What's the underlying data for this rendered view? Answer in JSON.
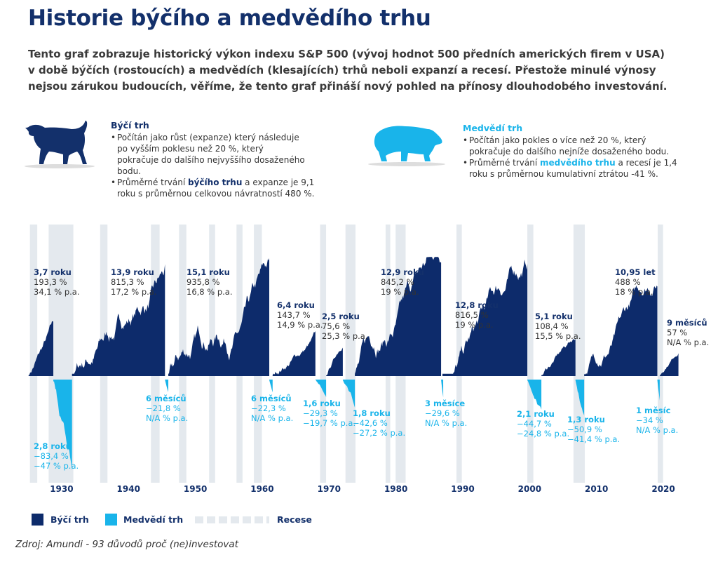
{
  "title": "Historie býčího a medvědího trhu",
  "intro": [
    "Tento graf zobrazuje historický výkon indexu S&P 500 (vývoj hodnot 500 předních amerických firem v USA)",
    "v době býčích (rostoucích) a medvědích (klesajících) trhů neboli expanzí a recesí. Přestože minulé výnosy",
    "nejsou zárukou budoucích, věříme, že tento graf přináší nový pohled na přínosy dlouhodobého investování."
  ],
  "bull_info": {
    "icon": "bull-icon",
    "heading": "Býčí trh",
    "item1": "Počítán jako růst (expanze) který následuje po vyšším poklesu než 20 %, který pokračuje do dalšího nejvyššího dosaženého bodu.",
    "item2_pre": "Průměrné trvání ",
    "item2_hl": "býčího trhu",
    "item2_post": " a expanze je 9,1 roku s průměrnou celkovou návratností 480 %."
  },
  "bear_info": {
    "icon": "bear-icon",
    "heading": "Medvědí trh",
    "item1": "Počítán jako pokles o více než 20 %, který pokračuje do dalšího nejníže dosaženého bodu.",
    "item2_pre": "Průměrné trvání ",
    "item2_hl": "medvědího trhu",
    "item2_post": " a recesí je 1,4 roku s průměrnou kumulativní ztrátou -41 %."
  },
  "chart_data": {
    "type": "area",
    "x_ticks": [
      "1930",
      "1940",
      "1950",
      "1960",
      "1970",
      "1980",
      "1990",
      "2000",
      "2010",
      "2020"
    ],
    "colors": {
      "bull": "#0d2b6b",
      "bear": "#19b4ea",
      "recession": "#e4e9ee"
    },
    "bull_markets": [
      {
        "start": 1926.0,
        "end": 1929.7,
        "duration": "3,7 roku",
        "return": "193,3 %",
        "return_pct": 193.3,
        "annual": "34,1 % p.a."
      },
      {
        "start": 1932.5,
        "end": 1946.4,
        "duration": "13,9 roku",
        "return": "815,3 %",
        "return_pct": 815.3,
        "annual": "17,2 % p.a."
      },
      {
        "start": 1946.9,
        "end": 1962.0,
        "duration": "15,1 roku",
        "return": "935,8 %",
        "return_pct": 935.8,
        "annual": "16,8 % p.a."
      },
      {
        "start": 1962.5,
        "end": 1968.9,
        "duration": "6,4 roku",
        "return": "143,7 %",
        "return_pct": 143.7,
        "annual": "14,9 % p.a."
      },
      {
        "start": 1970.5,
        "end": 1973.0,
        "duration": "2,5 roku",
        "return": "75,6 %",
        "return_pct": 75.6,
        "annual": "25,3 % p.a."
      },
      {
        "start": 1974.8,
        "end": 1987.7,
        "duration": "12,9 roku",
        "return": "845,2 %",
        "return_pct": 845.2,
        "annual": "19 % p.a."
      },
      {
        "start": 1987.9,
        "end": 2000.6,
        "duration": "12,8 roku",
        "return": "816,5 %",
        "return_pct": 816.5,
        "annual": "19 % p.a."
      },
      {
        "start": 2002.7,
        "end": 2007.8,
        "duration": "5,1 roku",
        "return": "108,4 %",
        "return_pct": 108.4,
        "annual": "15,5 % p.a."
      },
      {
        "start": 2009.1,
        "end": 2020.05,
        "duration": "10,95 let",
        "return": "488 %",
        "return_pct": 488,
        "annual": "18 % p.a."
      },
      {
        "start": 2020.4,
        "end": 2023.2,
        "duration": "9 měsíců",
        "return": "57 %",
        "return_pct": 57,
        "annual": "N/A % p.a."
      }
    ],
    "bear_markets": [
      {
        "start": 1929.7,
        "end": 1932.5,
        "duration": "2,8 roku",
        "return": "−83,4 %",
        "return_pct": -83.4,
        "annual": "−47 % p.a."
      },
      {
        "start": 1946.4,
        "end": 1946.9,
        "duration": "6 měsíců",
        "return": "−21,8 %",
        "return_pct": -21.8,
        "annual": "N/A % p.a."
      },
      {
        "start": 1962.0,
        "end": 1962.5,
        "duration": "6 měsíců",
        "return": "−22,3 %",
        "return_pct": -22.3,
        "annual": "N/A % p.a."
      },
      {
        "start": 1968.9,
        "end": 1970.5,
        "duration": "1,6 roku",
        "return": "−29,3 %",
        "return_pct": -29.3,
        "annual": "−19,7 % p.a."
      },
      {
        "start": 1973.0,
        "end": 1974.8,
        "duration": "1,8 roku",
        "return": "−42,6 %",
        "return_pct": -42.6,
        "annual": "−27,2 % p.a."
      },
      {
        "start": 1987.7,
        "end": 1987.9,
        "duration": "3 měsíce",
        "return": "−29,6 %",
        "return_pct": -29.6,
        "annual": "N/A % p.a."
      },
      {
        "start": 2000.6,
        "end": 2002.7,
        "duration": "2,1 roku",
        "return": "−44,7 %",
        "return_pct": -44.7,
        "annual": "−24,8 % p.a."
      },
      {
        "start": 2007.8,
        "end": 2009.1,
        "duration": "1,3 roku",
        "return": "−50,9 %",
        "return_pct": -50.9,
        "annual": "−41,4 % p.a."
      },
      {
        "start": 2020.05,
        "end": 2020.4,
        "duration": "1 měsíc",
        "return": "−34 %",
        "return_pct": -34,
        "annual": "N/A % p.a."
      }
    ],
    "recessions": [
      [
        1926.2,
        1927.3
      ],
      [
        1929.0,
        1932.7
      ],
      [
        1936.7,
        1937.8
      ],
      [
        1944.3,
        1945.6
      ],
      [
        1948.5,
        1949.6
      ],
      [
        1953.0,
        1953.9
      ],
      [
        1957.1,
        1958.0
      ],
      [
        1959.7,
        1960.9
      ],
      [
        1969.6,
        1970.5
      ],
      [
        1973.4,
        1974.9
      ],
      [
        1979.4,
        1980.1
      ],
      [
        1980.9,
        1982.4
      ],
      [
        1990.0,
        1990.8
      ],
      [
        2000.6,
        2001.5
      ],
      [
        2007.5,
        2009.2
      ],
      [
        2020.1,
        2020.9
      ]
    ],
    "y_scale": "log"
  },
  "legend": {
    "bull": "Býčí trh",
    "bear": "Medvědí trh",
    "recession": "Recese"
  },
  "source": "Zdroj: Amundi - 93 důvodů proč (ne)investovat"
}
